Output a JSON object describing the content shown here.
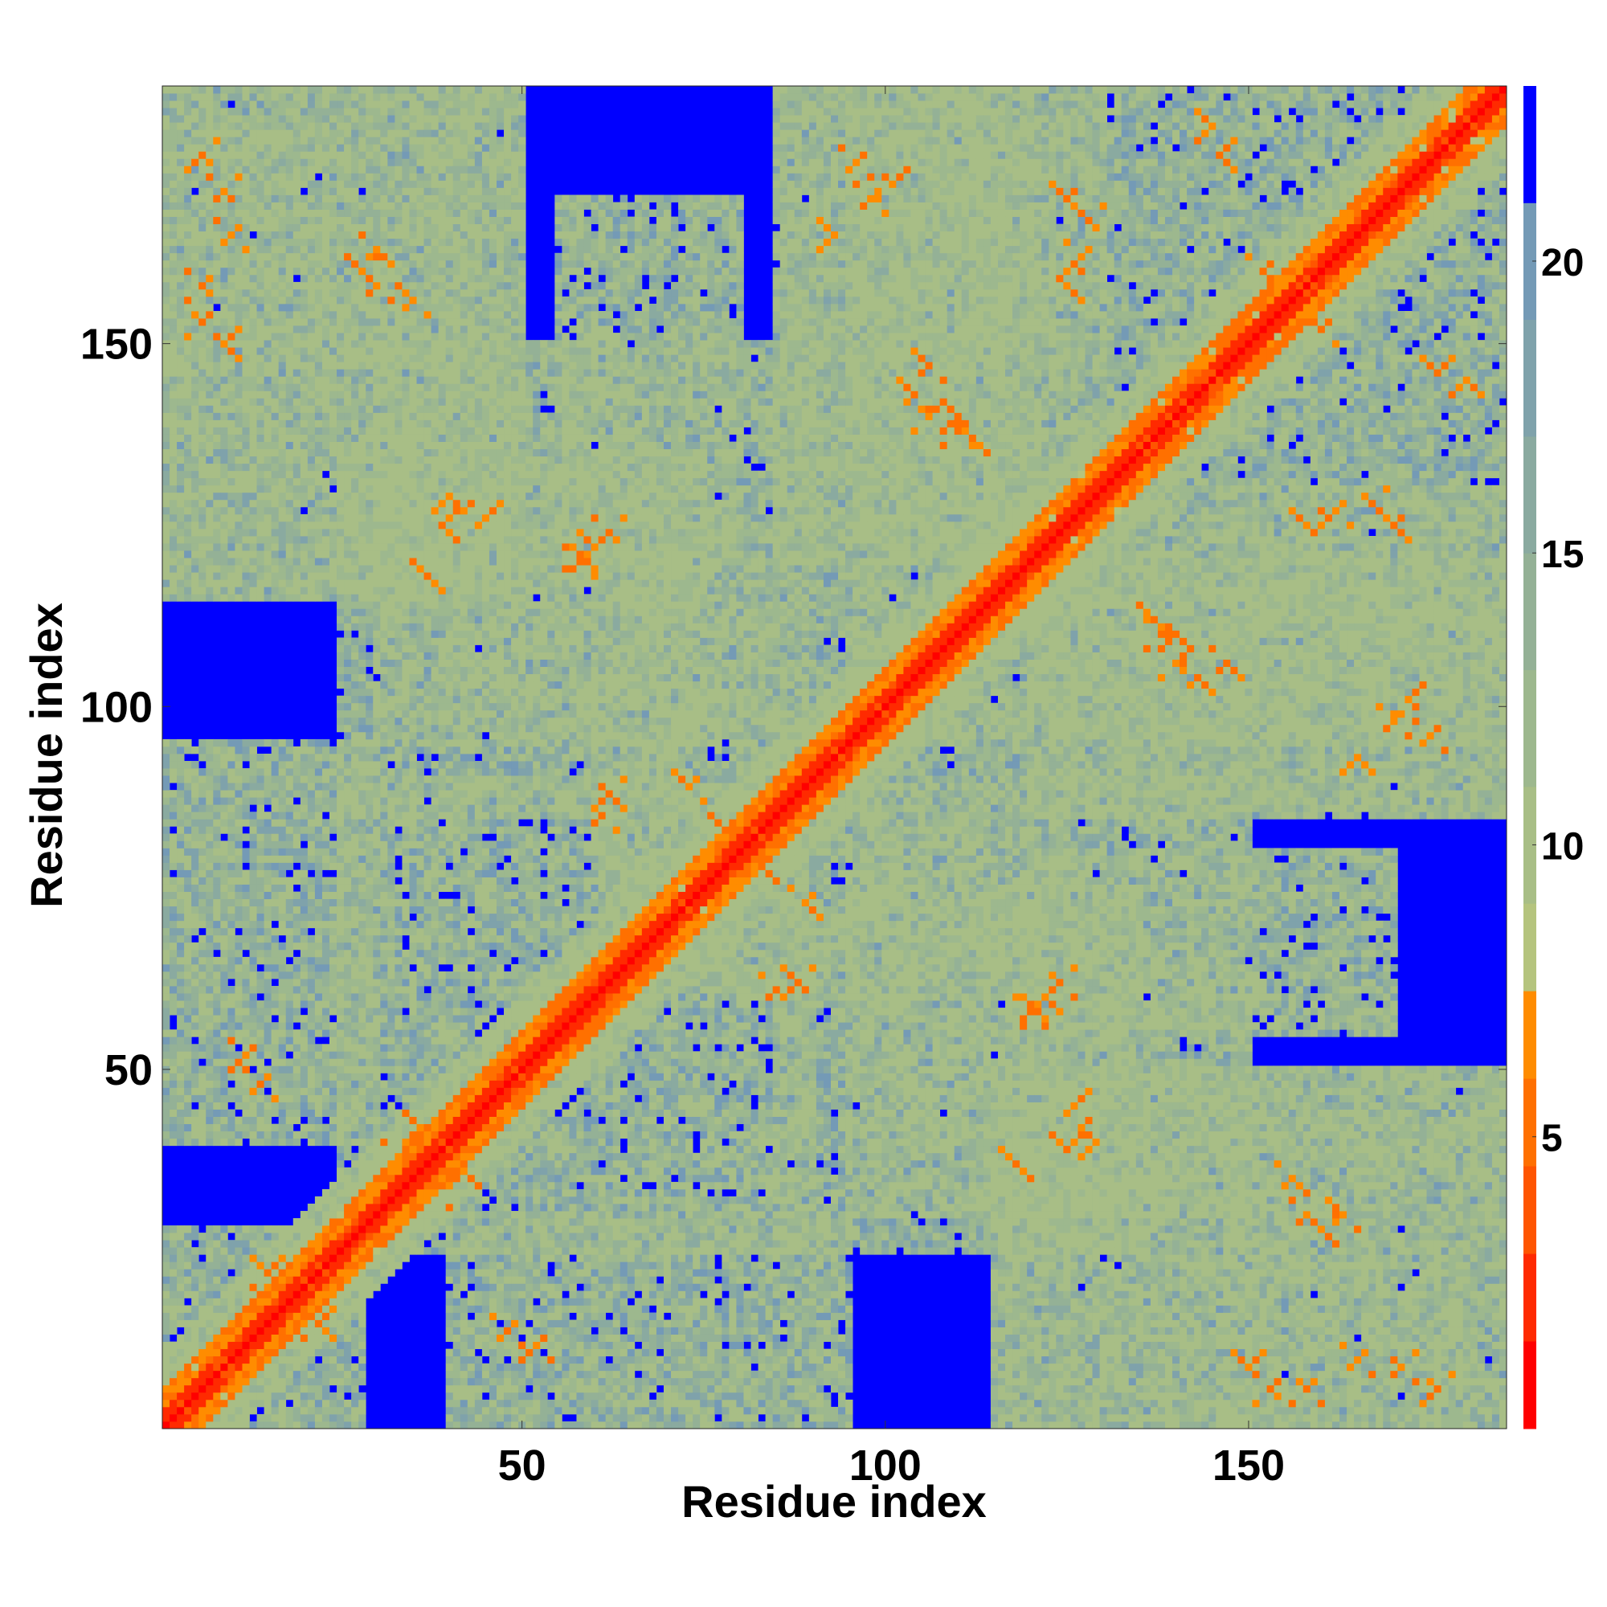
{
  "chart_data": {
    "type": "heatmap",
    "title": "",
    "xlabel": "Residue index",
    "ylabel": "Residue index",
    "n_residues": 185,
    "xlim": [
      1,
      185
    ],
    "ylim": [
      1,
      185
    ],
    "x_ticks": [
      {
        "value": 50,
        "label": "50"
      },
      {
        "value": 100,
        "label": "100"
      },
      {
        "value": 150,
        "label": "150"
      }
    ],
    "y_ticks": [
      {
        "value": 50,
        "label": "50"
      },
      {
        "value": 100,
        "label": "100"
      },
      {
        "value": 150,
        "label": "150"
      }
    ],
    "colorbar": {
      "range": [
        0,
        23
      ],
      "ticks": [
        {
          "value": 5,
          "label": "5"
        },
        {
          "value": 10,
          "label": "10"
        },
        {
          "value": 15,
          "label": "15"
        },
        {
          "value": 20,
          "label": "20"
        }
      ],
      "levels": [
        {
          "from": 0,
          "to": 1.5,
          "color": "#ff0000"
        },
        {
          "from": 1.5,
          "to": 3,
          "color": "#ff2a00"
        },
        {
          "from": 3,
          "to": 4.5,
          "color": "#ff5500"
        },
        {
          "from": 4.5,
          "to": 6,
          "color": "#ff7000"
        },
        {
          "from": 6,
          "to": 7.5,
          "color": "#ff8c00"
        },
        {
          "from": 7.5,
          "to": 9,
          "color": "#b5c47e"
        },
        {
          "from": 9,
          "to": 11,
          "color": "#a8be86"
        },
        {
          "from": 11,
          "to": 13,
          "color": "#9db88e"
        },
        {
          "from": 13,
          "to": 15,
          "color": "#94b196"
        },
        {
          "from": 15,
          "to": 17,
          "color": "#8aaaa0"
        },
        {
          "from": 17,
          "to": 19,
          "color": "#7fa2ab"
        },
        {
          "from": 19,
          "to": 21,
          "color": "#749ab6"
        },
        {
          "from": 21,
          "to": 23,
          "color": "#0000ff"
        }
      ]
    },
    "background_color": "#0000ff",
    "diagonal_color": "#ff0000",
    "contact_color": "#ff8c00",
    "cluster_color": "#a3bc8a",
    "contact_blocks": [
      {
        "x": [
          1,
          28
        ],
        "y": [
          1,
          28
        ]
      },
      {
        "x": [
          25,
          90
        ],
        "y": [
          25,
          90
        ]
      },
      {
        "x": [
          60,
          125
        ],
        "y": [
          60,
          125
        ]
      },
      {
        "x": [
          95,
          185
        ],
        "y": [
          95,
          185
        ]
      },
      {
        "x": [
          30,
          90
        ],
        "y": [
          95,
          150
        ]
      },
      {
        "x": [
          1,
          50
        ],
        "y": [
          115,
          185
        ]
      },
      {
        "x": [
          85,
          135
        ],
        "y": [
          25,
          75
        ]
      },
      {
        "x": [
          115,
          185
        ],
        "y": [
          1,
          50
        ]
      },
      {
        "x": [
          85,
          130
        ],
        "y": [
          120,
          185
        ]
      },
      {
        "x": [
          125,
          185
        ],
        "y": [
          85,
          120
        ]
      },
      {
        "x": [
          40,
          95
        ],
        "y": [
          1,
          30
        ]
      },
      {
        "x": [
          125,
          170
        ],
        "y": [
          55,
          80
        ]
      }
    ],
    "off_diagonal_contacts": [
      [
        15,
        22
      ],
      [
        22,
        15
      ],
      [
        33,
        38
      ],
      [
        38,
        33
      ],
      [
        36,
        42
      ],
      [
        42,
        36
      ],
      [
        40,
        129
      ],
      [
        45,
        126
      ],
      [
        58,
        121
      ],
      [
        62,
        124
      ],
      [
        73,
        89
      ],
      [
        78,
        83
      ],
      [
        83,
        78
      ],
      [
        88,
        62
      ],
      [
        85,
        61
      ],
      [
        70,
        67
      ],
      [
        67,
        70
      ],
      [
        122,
        60
      ],
      [
        120,
        58
      ],
      [
        118,
        37
      ],
      [
        125,
        39
      ],
      [
        156,
        35
      ],
      [
        158,
        30
      ],
      [
        150,
        9
      ],
      [
        158,
        6
      ],
      [
        165,
        10
      ],
      [
        6,
        176
      ],
      [
        9,
        171
      ],
      [
        6,
        153
      ],
      [
        28,
        160
      ],
      [
        30,
        163
      ],
      [
        101,
        172
      ],
      [
        96,
        175
      ],
      [
        125,
        170
      ],
      [
        128,
        167
      ],
      [
        143,
        104
      ],
      [
        147,
        106
      ],
      [
        158,
        125
      ],
      [
        162,
        127
      ],
      [
        170,
        98
      ],
      [
        165,
        93
      ],
      [
        106,
        140
      ],
      [
        110,
        138
      ],
      [
        140,
        110
      ],
      [
        137,
        112
      ],
      [
        160,
        152
      ],
      [
        176,
        146
      ],
      [
        180,
        145
      ],
      [
        95,
        97
      ],
      [
        48,
        14
      ],
      [
        52,
        12
      ]
    ]
  }
}
